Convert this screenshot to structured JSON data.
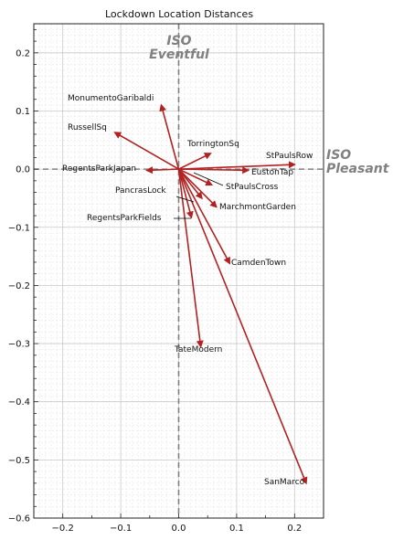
{
  "chart_data": {
    "type": "vector",
    "title": "Lockdown Location Distances",
    "xlabel": "",
    "ylabel": "",
    "xlim": [
      -0.25,
      0.25
    ],
    "ylim": [
      -0.6,
      0.25
    ],
    "xticks": [
      -0.2,
      -0.1,
      0.0,
      0.1,
      0.2
    ],
    "xtick_labels": [
      "−0.2",
      "−0.1",
      "0.0",
      "0.1",
      "0.2"
    ],
    "yticks": [
      0.2,
      0.1,
      0.0,
      -0.1,
      -0.2,
      -0.3,
      -0.4,
      -0.5,
      -0.6
    ],
    "ytick_labels": [
      "0.2",
      "0.1",
      "0.0",
      "−0.1",
      "−0.2",
      "−0.3",
      "−0.4",
      "−0.5",
      "−0.6"
    ],
    "grid": true,
    "axis_labels": {
      "y_top": [
        "ISO",
        "Eventful"
      ],
      "x_right": [
        "ISO",
        "Pleasant"
      ]
    },
    "colors": {
      "arrow": "#b22222",
      "axis_dashes": "#808080"
    },
    "vectors": [
      {
        "name": "MonumentoGaribaldi",
        "x": -0.03,
        "y": 0.11
      },
      {
        "name": "RussellSq",
        "x": -0.11,
        "y": 0.063
      },
      {
        "name": "TorringtonSq",
        "x": 0.055,
        "y": 0.027
      },
      {
        "name": "StPaulsRow",
        "x": 0.2,
        "y": 0.008
      },
      {
        "name": "EustonTap",
        "x": 0.12,
        "y": -0.002
      },
      {
        "name": "RegentsParkJapan",
        "x": -0.055,
        "y": -0.002
      },
      {
        "name": "StPaulsCross",
        "x": 0.057,
        "y": -0.027
      },
      {
        "name": "PancrasLock",
        "x": 0.04,
        "y": -0.05
      },
      {
        "name": "MarchmontGarden",
        "x": 0.065,
        "y": -0.065
      },
      {
        "name": "RegentsParkFields",
        "x": 0.022,
        "y": -0.083
      },
      {
        "name": "CamdenTown",
        "x": 0.088,
        "y": -0.162
      },
      {
        "name": "TateModern",
        "x": 0.038,
        "y": -0.305
      },
      {
        "name": "SanMarco",
        "x": 0.22,
        "y": -0.54
      }
    ]
  }
}
